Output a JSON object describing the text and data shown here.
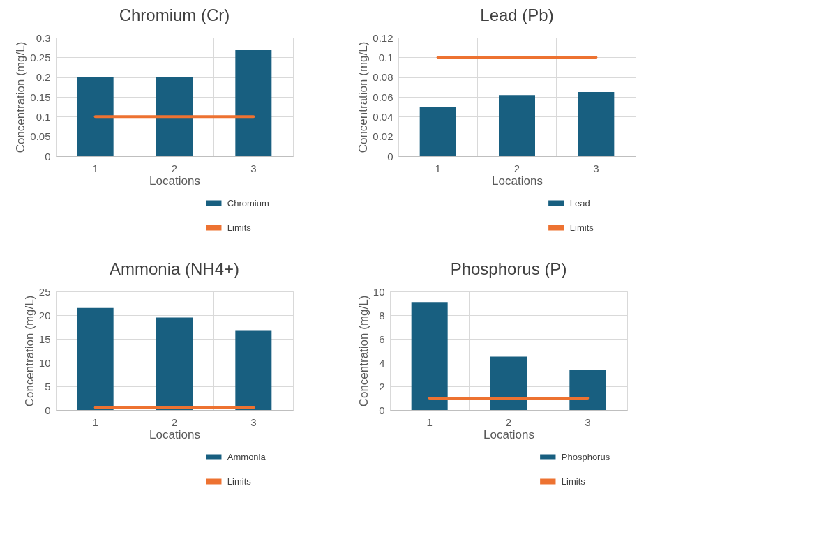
{
  "chart_data": [
    {
      "type": "bar",
      "title": "Chromium (Cr)",
      "xlabel": "Locations",
      "ylabel": "Concentration (mg/L)",
      "categories": [
        "1",
        "2",
        "3"
      ],
      "ylim": [
        0,
        0.3
      ],
      "yticks": [
        0,
        0.05,
        0.1,
        0.15,
        0.2,
        0.25,
        0.3
      ],
      "grid": true,
      "legend": "bottom right",
      "series": [
        {
          "name": "Chromium",
          "color": "#185f80",
          "values": [
            0.2,
            0.2,
            0.27
          ]
        },
        {
          "name": "Limits",
          "type": "line",
          "color": "#ed7231",
          "values": [
            0.1,
            0.1,
            0.1
          ]
        }
      ]
    },
    {
      "type": "bar",
      "title": "Lead (Pb)",
      "xlabel": "Locations",
      "ylabel": "Concentration (mg/L)",
      "categories": [
        "1",
        "2",
        "3"
      ],
      "ylim": [
        0,
        0.12
      ],
      "yticks": [
        0,
        0.02,
        0.04,
        0.06,
        0.08,
        0.1,
        0.12
      ],
      "grid": true,
      "legend": "bottom right",
      "series": [
        {
          "name": "Lead",
          "color": "#185f80",
          "values": [
            0.05,
            0.062,
            0.065
          ]
        },
        {
          "name": "Limits",
          "type": "line",
          "color": "#ed7231",
          "values": [
            0.1,
            0.1,
            0.1
          ]
        }
      ]
    },
    {
      "type": "bar",
      "title": "Ammonia (NH4+)",
      "xlabel": "Locations",
      "ylabel": "Concentration (mg/L)",
      "categories": [
        "1",
        "2",
        "3"
      ],
      "ylim": [
        0,
        25
      ],
      "yticks": [
        0,
        5,
        10,
        15,
        20,
        25
      ],
      "grid": true,
      "legend": "bottom right",
      "series": [
        {
          "name": "Ammonia",
          "color": "#185f80",
          "values": [
            21.5,
            19.5,
            16.7
          ]
        },
        {
          "name": "Limits",
          "type": "line",
          "color": "#ed7231",
          "values": [
            0.5,
            0.5,
            0.5
          ]
        }
      ]
    },
    {
      "type": "bar",
      "title": "Phosphorus (P)",
      "xlabel": "Locations",
      "ylabel": "Concentration (mg/L)",
      "categories": [
        "1",
        "2",
        "3"
      ],
      "ylim": [
        0,
        10
      ],
      "yticks": [
        0,
        2,
        4,
        6,
        8,
        10
      ],
      "grid": true,
      "legend": "bottom right",
      "series": [
        {
          "name": "Phosphorus",
          "color": "#185f80",
          "values": [
            9.1,
            4.5,
            3.4
          ]
        },
        {
          "name": "Limits",
          "type": "line",
          "color": "#ed7231",
          "values": [
            1,
            1,
            1
          ]
        }
      ]
    }
  ]
}
